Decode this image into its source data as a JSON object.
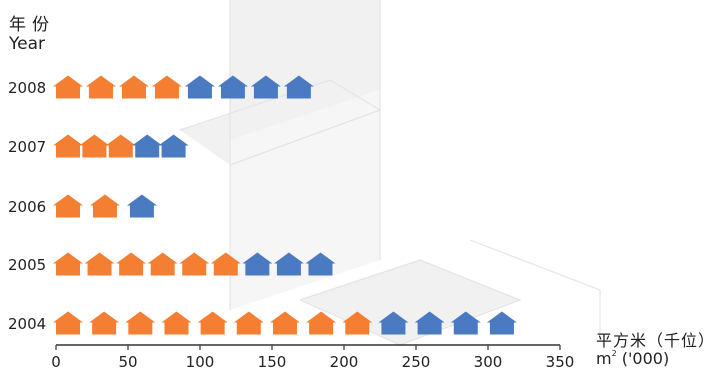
{
  "chart_data": {
    "type": "bar",
    "style": "pictograph",
    "categories": [
      "2008",
      "2007",
      "2006",
      "2005",
      "2004"
    ],
    "series": [
      {
        "color": "#f47f32",
        "values": [
          4,
          3,
          2,
          6,
          9
        ]
      },
      {
        "color": "#4a7ac1",
        "values": [
          4,
          2,
          1,
          3,
          4
        ]
      }
    ],
    "bar_end_values": [
      177,
      90,
      68,
      192,
      318
    ],
    "xlabel_cn": "平方米（千位）",
    "xlabel_en_unit": "m",
    "xlabel_en_sup": "2",
    "xlabel_en_rest": " ('000)",
    "ylabel_cn": "年份",
    "ylabel_en": "Year",
    "xlim": [
      0,
      350
    ],
    "xticks": [
      0,
      50,
      100,
      150,
      200,
      250,
      300,
      350
    ],
    "icon": "house-icon"
  }
}
